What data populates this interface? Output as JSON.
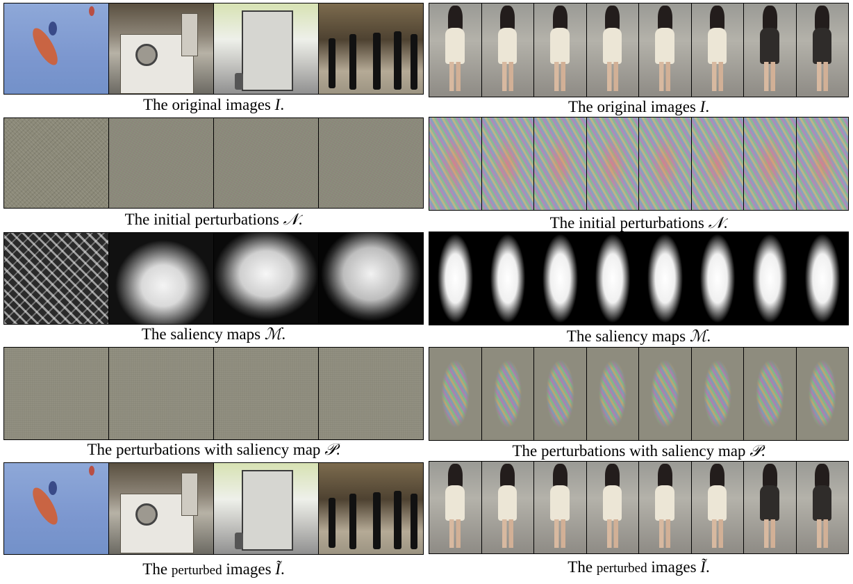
{
  "left": {
    "rows": [
      {
        "caption_prefix": "The original images ",
        "caption_symbol": "I",
        "caption_suffix": "."
      },
      {
        "caption_prefix": "The initial perturbations ",
        "caption_symbol": "𝒩",
        "caption_suffix": "."
      },
      {
        "caption_prefix": "The saliency maps ",
        "caption_symbol": "ℳ",
        "caption_suffix": "."
      },
      {
        "caption_prefix": "The perturbations with saliency map ",
        "caption_symbol": "𝒫",
        "caption_suffix": "."
      },
      {
        "caption_prefix": "The ",
        "caption_small": "perturbed",
        "caption_mid": " images ",
        "caption_symbol": "Ĩ",
        "caption_suffix": "."
      }
    ]
  },
  "right": {
    "rows": [
      {
        "caption_prefix": "The original images ",
        "caption_symbol": "I",
        "caption_suffix": "."
      },
      {
        "caption_prefix": "The initial perturbations ",
        "caption_symbol": "𝒩",
        "caption_suffix": "."
      },
      {
        "caption_prefix": "The saliency maps ",
        "caption_symbol": "ℳ",
        "caption_suffix": "."
      },
      {
        "caption_prefix": "The perturbations with saliency map ",
        "caption_symbol": "𝒫",
        "caption_suffix": "."
      },
      {
        "caption_prefix": "The ",
        "caption_small": "perturbed",
        "caption_mid": " images ",
        "caption_symbol": "Ĩ",
        "caption_suffix": "."
      }
    ]
  }
}
